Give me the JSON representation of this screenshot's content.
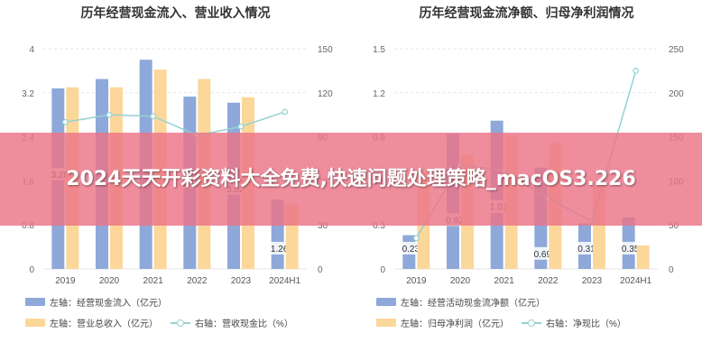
{
  "colors": {
    "blue": "#8ea8d9",
    "yellow": "#fcd79a",
    "teal": "#94d2d2",
    "banner": "#ec7487",
    "banner_text": "#ffffff"
  },
  "overlay": {
    "text": "2024天天开彩资料大全免费,快速问题处理策略_macOS3.226"
  },
  "chart_data": [
    {
      "type": "bar",
      "title": "历年经营现金流入、营业收入情况",
      "categories": [
        "2019",
        "2020",
        "2021",
        "2022",
        "2023",
        "2024H1"
      ],
      "left_axis": {
        "min": 0,
        "max": 4,
        "ticks": [
          "0",
          "0.8",
          "1.6",
          "2.4",
          "3.2",
          "4"
        ]
      },
      "right_axis": {
        "min": 0,
        "max": 150,
        "ticks": [
          "0",
          "30",
          "60",
          "90",
          "120",
          "150"
        ]
      },
      "series": [
        {
          "name": "左轴：经营现金流入（亿元）",
          "axis": "left",
          "kind": "bar",
          "color": "#8ea8d9",
          "values": [
            3.28,
            3.45,
            3.8,
            3.13,
            3.02,
            1.26
          ],
          "labels": [
            "3.28",
            "",
            "",
            "3.13",
            "3.02",
            "1.26"
          ]
        },
        {
          "name": "左轴：营业总收入（亿元）",
          "axis": "left",
          "kind": "bar",
          "color": "#fcd79a",
          "values": [
            3.3,
            3.3,
            3.62,
            3.45,
            3.12,
            1.17
          ],
          "labels": [
            "",
            "",
            "",
            "",
            "",
            ""
          ]
        },
        {
          "name": "右轴：营收现金比（%）",
          "axis": "right",
          "kind": "line",
          "color": "#94d2d2",
          "values": [
            100,
            105,
            104,
            91,
            97,
            107
          ]
        }
      ]
    },
    {
      "type": "bar",
      "title": "历年经营现金流净额、归母净利润情况",
      "categories": [
        "2019",
        "2020",
        "2021",
        "2022",
        "2023",
        "2024H1"
      ],
      "left_axis": {
        "min": 0,
        "max": 1.5,
        "ticks": [
          "0",
          "0.3",
          "0.6",
          "0.9",
          "1.2",
          "1.5"
        ]
      },
      "right_axis": {
        "min": 0,
        "max": 250,
        "ticks": [
          "0",
          "50",
          "100",
          "150",
          "200",
          "250"
        ]
      },
      "series": [
        {
          "name": "左轴：经营活动现金流净额（亿元）",
          "axis": "left",
          "kind": "bar",
          "color": "#8ea8d9",
          "values": [
            0.23,
            0.92,
            1.01,
            0.69,
            0.31,
            0.35
          ],
          "labels": [
            "0.23",
            "0.92",
            "1.01",
            "0.69",
            "0.31",
            "0.35"
          ]
        },
        {
          "name": "左轴：归母净利润（亿元）",
          "axis": "left",
          "kind": "bar",
          "color": "#fcd79a",
          "values": [
            0.66,
            0.78,
            0.91,
            0.86,
            0.57,
            0.16
          ],
          "labels": [
            "",
            "",
            "",
            "",
            "",
            ""
          ]
        },
        {
          "name": "右轴：净现比（%）",
          "axis": "right",
          "kind": "line",
          "color": "#94d2d2",
          "values": [
            35,
            118,
            112,
            80,
            54,
            225
          ]
        }
      ]
    }
  ]
}
